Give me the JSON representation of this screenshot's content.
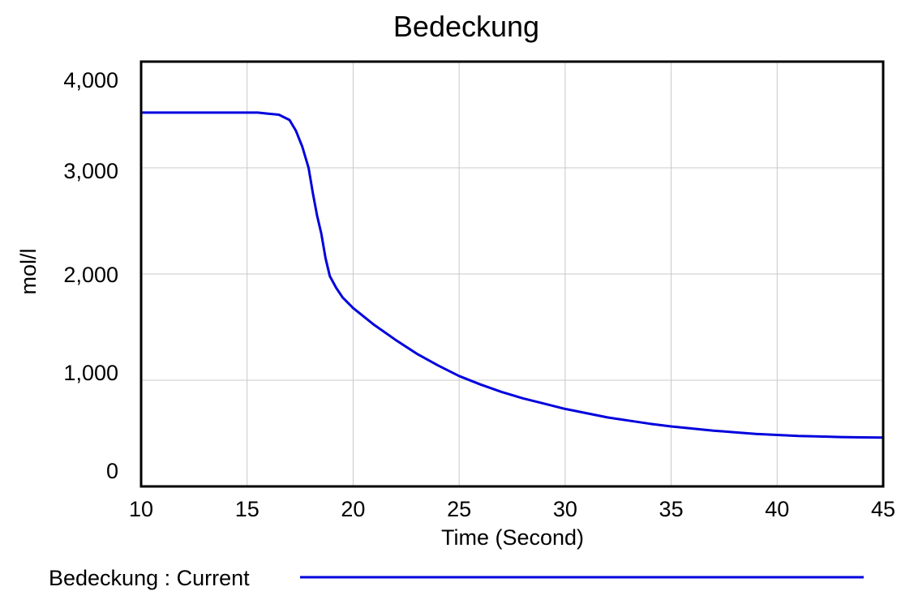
{
  "chart_data": {
    "type": "line",
    "title": "Bedeckung",
    "xlabel": "Time (Second)",
    "ylabel": "mol/l",
    "xlim": [
      10,
      45
    ],
    "ylim": [
      0,
      4000
    ],
    "x_ticks": [
      10,
      15,
      20,
      25,
      30,
      35,
      40,
      45
    ],
    "x_tick_labels": [
      "10",
      "15",
      "20",
      "25",
      "30",
      "35",
      "40",
      "45"
    ],
    "y_ticks": [
      0,
      1000,
      2000,
      3000,
      4000
    ],
    "y_tick_labels": [
      "0",
      "1,000",
      "2,000",
      "3,000",
      "4,000"
    ],
    "grid": true,
    "legend_position": "bottom",
    "series": [
      {
        "name": "Bedeckung : Current",
        "color": "#0000dd",
        "x": [
          10,
          12,
          14,
          15.5,
          16,
          16.5,
          17,
          17.3,
          17.6,
          17.9,
          18.1,
          18.3,
          18.5,
          18.7,
          18.9,
          19.2,
          19.5,
          20,
          20.5,
          21,
          22,
          23,
          24,
          25,
          26,
          27,
          28,
          29,
          30,
          31,
          32,
          33,
          34,
          35,
          36,
          37,
          38,
          39,
          40,
          41,
          42,
          43,
          44,
          45
        ],
        "y": [
          3520,
          3520,
          3520,
          3520,
          3510,
          3500,
          3450,
          3350,
          3200,
          3000,
          2760,
          2550,
          2380,
          2150,
          1980,
          1870,
          1780,
          1680,
          1600,
          1520,
          1380,
          1250,
          1140,
          1040,
          960,
          890,
          830,
          780,
          730,
          690,
          650,
          620,
          590,
          565,
          545,
          525,
          510,
          495,
          485,
          475,
          470,
          465,
          462,
          460
        ]
      }
    ]
  }
}
